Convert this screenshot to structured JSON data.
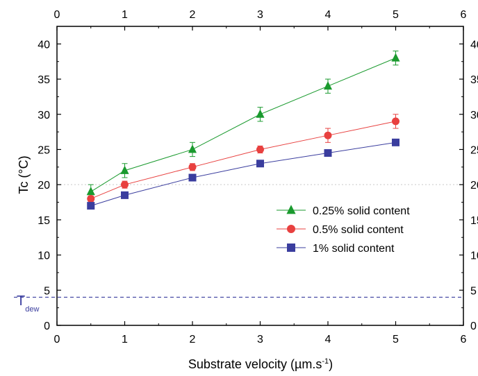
{
  "chart_data": {
    "type": "line",
    "ylabel": "Tc (°C)",
    "xlabel_main": "Substrate velocity (µm.s",
    "xlabel_sup": "-1",
    "xlabel_close": ")",
    "xlim": [
      0,
      6
    ],
    "ylim": [
      0,
      42.5
    ],
    "x_ticks": [
      0,
      1,
      2,
      3,
      4,
      5,
      6
    ],
    "y_ticks": [
      0,
      5,
      10,
      15,
      20,
      25,
      30,
      35,
      40
    ],
    "grid": false,
    "legend_placement": "right-middle",
    "series": [
      {
        "name": "0.25% solid content",
        "color": "#1a9a2e",
        "marker": "triangle",
        "x": [
          0.5,
          1,
          2,
          3,
          4,
          5
        ],
        "y": [
          19,
          22,
          25,
          30,
          34,
          38
        ],
        "err": [
          1,
          1,
          1,
          1,
          1,
          1
        ]
      },
      {
        "name": "0.5% solid content",
        "color": "#e8403f",
        "marker": "circle",
        "x": [
          0.5,
          1,
          2,
          3,
          4,
          5
        ],
        "y": [
          18,
          20,
          22.5,
          25,
          27,
          29
        ],
        "err": [
          0.4,
          0.5,
          0.5,
          0.5,
          1,
          1
        ]
      },
      {
        "name": "1% solid content",
        "color": "#3a3d9e",
        "marker": "square",
        "x": [
          0.5,
          1,
          2,
          3,
          4,
          5
        ],
        "y": [
          17,
          18.5,
          21,
          23,
          24.5,
          26
        ],
        "err": [
          0.3,
          0.4,
          0.4,
          0.4,
          0.3,
          0.3
        ]
      }
    ],
    "reference_lines": [
      {
        "y": 20,
        "style": "dotted",
        "color": "#c8c8c8"
      },
      {
        "y": 4,
        "style": "dashed",
        "color": "#3a3d9e",
        "label": "T",
        "label_sub": "dew"
      }
    ]
  }
}
